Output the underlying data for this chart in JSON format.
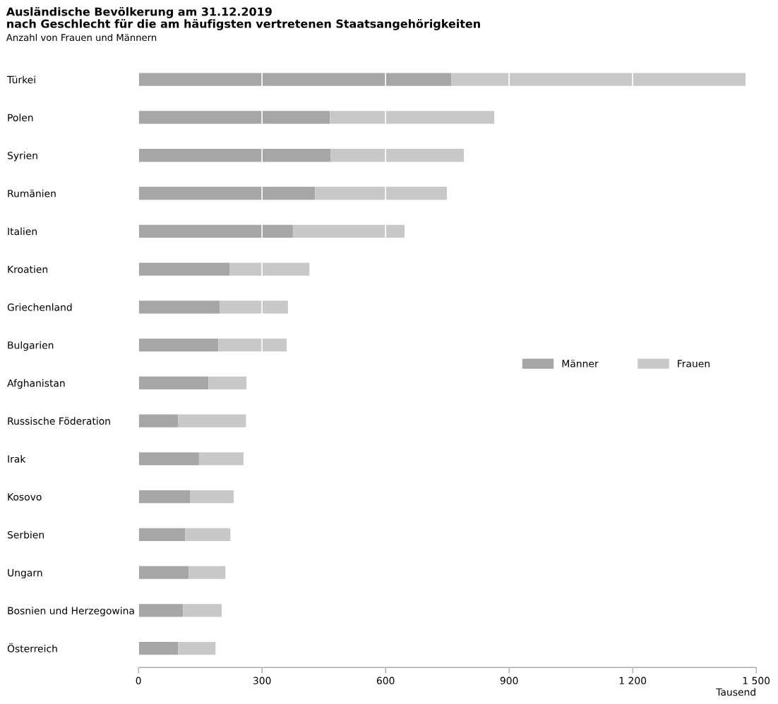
{
  "chart_data": {
    "type": "bar",
    "orientation": "horizontal",
    "stacked": true,
    "title": "Ausländische Bevölkerung am 31.12.2019\nnach Geschlecht für die am häufigsten vertretenen Staatsangehörigkeiten",
    "subtitle": "Anzahl von Frauen und Männern",
    "xlabel": "Tausend",
    "categories": [
      "Türkei",
      "Polen",
      "Syrien",
      "Rumänien",
      "Italien",
      "Kroatien",
      "Griechenland",
      "Bulgarien",
      "Afghanistan",
      "Russische Föderation",
      "Irak",
      "Kosovo",
      "Serbien",
      "Ungarn",
      "Bosnien und Herzegowina",
      "Österreich"
    ],
    "series": [
      {
        "name": "Männer",
        "color": "#a6a6a6",
        "values": [
          760,
          465,
          466,
          429,
          375,
          221,
          197,
          194,
          170,
          96,
          147,
          125,
          113,
          122,
          108,
          96
        ]
      },
      {
        "name": "Frauen",
        "color": "#c8c8c8",
        "values": [
          714,
          399,
          324,
          320,
          271,
          194,
          166,
          166,
          92,
          165,
          108,
          106,
          110,
          89,
          94,
          91
        ]
      }
    ],
    "xlim": [
      0,
      1500
    ],
    "xticks": [
      0,
      300,
      600,
      900,
      {
        "value": 1200,
        "label": "1 200"
      },
      {
        "value": 1500,
        "label": "1 500"
      }
    ],
    "grid": "x",
    "legend": "center right"
  }
}
